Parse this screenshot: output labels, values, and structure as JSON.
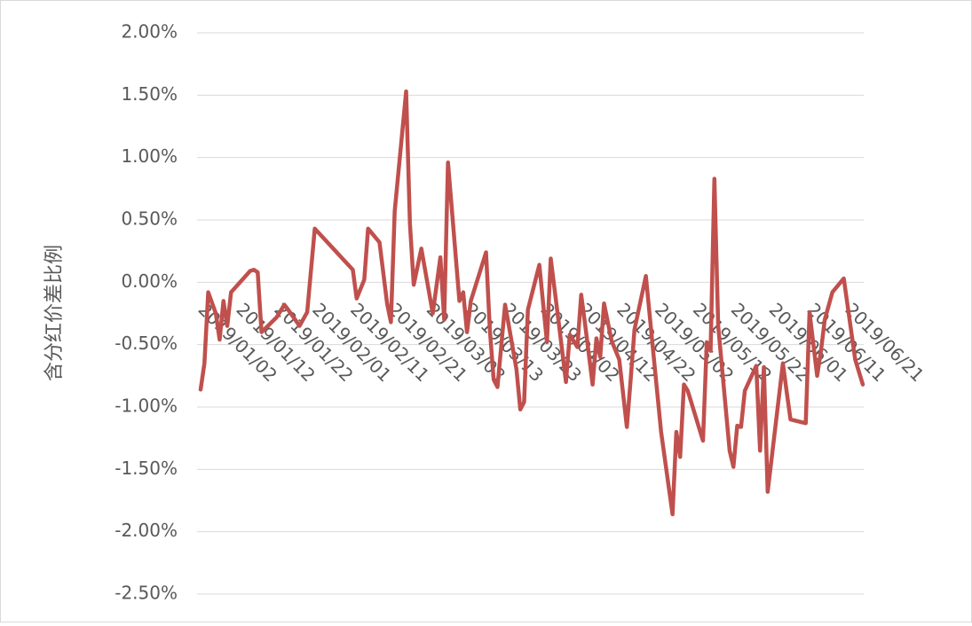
{
  "chart_data": {
    "type": "line",
    "y_label": "含分红价差比例",
    "color": "#c0504d",
    "grid": true,
    "ylim": [
      -2.5,
      2
    ],
    "yticks": [
      {
        "value": -2.5,
        "label": "-2.50%"
      },
      {
        "value": -2,
        "label": "-2.00%"
      },
      {
        "value": -1.5,
        "label": "-1.50%"
      },
      {
        "value": -1,
        "label": "-1.00%"
      },
      {
        "value": -0.5,
        "label": "-0.50%"
      },
      {
        "value": 0,
        "label": "0.00%"
      },
      {
        "value": 0.5,
        "label": "0.50%"
      },
      {
        "value": 1,
        "label": "1.00%"
      },
      {
        "value": 1.5,
        "label": "1.50%"
      },
      {
        "value": 2,
        "label": "2.00%"
      }
    ],
    "xlim": [
      "2019/01/02",
      "2019/06/25"
    ],
    "xticks": [
      "2019/01/02",
      "2019/01/12",
      "2019/01/22",
      "2019/02/01",
      "2019/02/11",
      "2019/02/21",
      "2019/03/03",
      "2019/03/13",
      "2019/03/23",
      "2019/04/02",
      "2019/04/12",
      "2019/04/22",
      "2019/05/02",
      "2019/05/12",
      "2019/05/22",
      "2019/06/01",
      "2019/06/11",
      "2019/06/21"
    ],
    "x": [
      "2019/01/02",
      "2019/01/03",
      "2019/01/04",
      "2019/01/06",
      "2019/01/07",
      "2019/01/08",
      "2019/01/09",
      "2019/01/10",
      "2019/01/15",
      "2019/01/16",
      "2019/01/17",
      "2019/01/18",
      "2019/01/22",
      "2019/01/24",
      "2019/01/25",
      "2019/01/28",
      "2019/01/30",
      "2019/02/01",
      "2019/02/11",
      "2019/02/12",
      "2019/02/14",
      "2019/02/15",
      "2019/02/18",
      "2019/02/20",
      "2019/02/21",
      "2019/02/22",
      "2019/02/25",
      "2019/02/26",
      "2019/02/27",
      "2019/03/01",
      "2019/03/04",
      "2019/03/06",
      "2019/03/07",
      "2019/03/08",
      "2019/03/11",
      "2019/03/12",
      "2019/03/13",
      "2019/03/14",
      "2019/03/18",
      "2019/03/19",
      "2019/03/20",
      "2019/03/21",
      "2019/03/23",
      "2019/03/24",
      "2019/03/26",
      "2019/03/27",
      "2019/03/28",
      "2019/03/29",
      "2019/04/01",
      "2019/04/03",
      "2019/04/04",
      "2019/04/06",
      "2019/04/08",
      "2019/04/09",
      "2019/04/11",
      "2019/04/12",
      "2019/04/13",
      "2019/04/15",
      "2019/04/16",
      "2019/04/17",
      "2019/04/18",
      "2019/04/20",
      "2019/04/22",
      "2019/04/24",
      "2019/04/25",
      "2019/04/26",
      "2019/04/29",
      "2019/05/01",
      "2019/05/03",
      "2019/05/06",
      "2019/05/07",
      "2019/05/08",
      "2019/05/09",
      "2019/05/10",
      "2019/05/14",
      "2019/05/15",
      "2019/05/16",
      "2019/05/17",
      "2019/05/18",
      "2019/05/21",
      "2019/05/22",
      "2019/05/23",
      "2019/05/24",
      "2019/05/25",
      "2019/05/28",
      "2019/05/29",
      "2019/05/30",
      "2019/05/31",
      "2019/06/04",
      "2019/06/05",
      "2019/06/06",
      "2019/06/10",
      "2019/06/11",
      "2019/06/13",
      "2019/06/14",
      "2019/06/15",
      "2019/06/17",
      "2019/06/20",
      "2019/06/23",
      "2019/06/25"
    ],
    "values": [
      -0.86,
      -0.65,
      -0.08,
      -0.25,
      -0.46,
      -0.15,
      -0.35,
      -0.08,
      0.09,
      0.1,
      0.08,
      -0.4,
      -0.28,
      -0.18,
      -0.22,
      -0.35,
      -0.24,
      0.43,
      0.1,
      -0.13,
      0.02,
      0.43,
      0.32,
      -0.17,
      -0.32,
      0.57,
      1.53,
      0.47,
      -0.02,
      0.27,
      -0.25,
      0.2,
      -0.3,
      0.96,
      -0.15,
      -0.08,
      -0.4,
      -0.15,
      0.24,
      -0.38,
      -0.78,
      -0.84,
      -0.18,
      -0.35,
      -0.7,
      -1.02,
      -0.96,
      -0.22,
      0.14,
      -0.48,
      0.19,
      -0.3,
      -0.8,
      -0.42,
      -0.52,
      -0.1,
      -0.33,
      -0.82,
      -0.45,
      -0.6,
      -0.17,
      -0.47,
      -0.62,
      -1.16,
      -0.78,
      -0.38,
      0.05,
      -0.58,
      -1.2,
      -1.86,
      -1.2,
      -1.4,
      -0.82,
      -0.87,
      -1.27,
      -0.48,
      -0.55,
      0.83,
      -0.35,
      -1.35,
      -1.48,
      -1.15,
      -1.16,
      -0.87,
      -0.67,
      -1.35,
      -0.68,
      -1.68,
      -0.65,
      -0.88,
      -1.1,
      -1.13,
      -0.24,
      -0.75,
      -0.55,
      -0.3,
      -0.08,
      0.03,
      -0.62,
      -0.82
    ]
  }
}
